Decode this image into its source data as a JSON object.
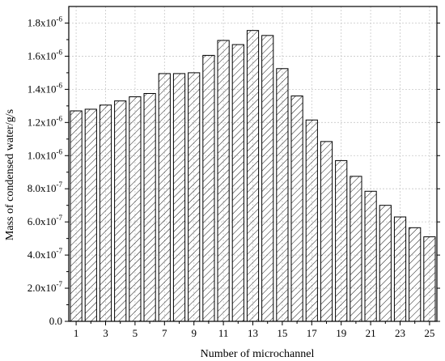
{
  "chart_data": {
    "type": "bar",
    "xlabel": "Number of microchannel",
    "ylabel": "Mass of condensed water/g/s",
    "categories": [
      "1",
      "2",
      "3",
      "4",
      "5",
      "6",
      "7",
      "8",
      "9",
      "10",
      "11",
      "12",
      "13",
      "14",
      "15",
      "16",
      "17",
      "18",
      "19",
      "20",
      "21",
      "22",
      "23",
      "24",
      "25"
    ],
    "x_tick_labels": [
      "1",
      "3",
      "5",
      "7",
      "9",
      "11",
      "13",
      "15",
      "17",
      "19",
      "21",
      "23",
      "25"
    ],
    "values": [
      1.27e-06,
      1.28e-06,
      1.305e-06,
      1.33e-06,
      1.355e-06,
      1.375e-06,
      1.495e-06,
      1.495e-06,
      1.5e-06,
      1.605e-06,
      1.695e-06,
      1.67e-06,
      1.755e-06,
      1.725e-06,
      1.525e-06,
      1.36e-06,
      1.215e-06,
      1.085e-06,
      9.7e-07,
      8.75e-07,
      7.85e-07,
      7e-07,
      6.3e-07,
      5.65e-07,
      5.1e-07
    ],
    "ylim": [
      0,
      1.9e-06
    ],
    "y_ticks": [
      {
        "value": 0,
        "mantissa": "0.0",
        "exponent": ""
      },
      {
        "value": 2e-07,
        "mantissa": "2.0x10",
        "exponent": "-7"
      },
      {
        "value": 4e-07,
        "mantissa": "4.0x10",
        "exponent": "-7"
      },
      {
        "value": 6e-07,
        "mantissa": "6.0x10",
        "exponent": "-7"
      },
      {
        "value": 8e-07,
        "mantissa": "8.0x10",
        "exponent": "-7"
      },
      {
        "value": 1e-06,
        "mantissa": "1.0x10",
        "exponent": "-6"
      },
      {
        "value": 1.2e-06,
        "mantissa": "1.2x10",
        "exponent": "-6"
      },
      {
        "value": 1.4e-06,
        "mantissa": "1.4x10",
        "exponent": "-6"
      },
      {
        "value": 1.6e-06,
        "mantissa": "1.6x10",
        "exponent": "-6"
      },
      {
        "value": 1.8e-06,
        "mantissa": "1.8x10",
        "exponent": "-6"
      }
    ],
    "grid": true,
    "bar_fill": "hatched",
    "colors": {
      "bar_stroke": "#000000",
      "grid": "#c8c8c8",
      "axis": "#000000"
    }
  }
}
